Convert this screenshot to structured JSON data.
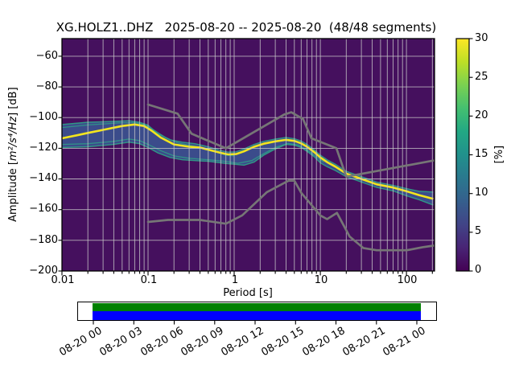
{
  "title": "XG.HOLZ1..DHZ   2025-08-20 -- 2025-08-20  (48/48 segments)",
  "axes": {
    "x": {
      "label": "Period [s]",
      "ticks": [
        "0.01",
        "0.1",
        "1",
        "10",
        "100"
      ],
      "tick_values": [
        0.01,
        0.1,
        1,
        10,
        100
      ]
    },
    "y": {
      "label_prefix": "Amplitude [",
      "label_math": "m²/s⁴/Hz",
      "label_suffix": "] [dB]",
      "ticks": [
        "−60",
        "−80",
        "−100",
        "−120",
        "−140",
        "−160",
        "−180",
        "−200"
      ],
      "tick_values": [
        -60,
        -80,
        -100,
        -120,
        -140,
        -160,
        -180,
        -200
      ]
    }
  },
  "colorbar": {
    "label": "[%]",
    "ticks": [
      "30",
      "25",
      "20",
      "15",
      "10",
      "5",
      "0"
    ],
    "tick_values": [
      30,
      25,
      20,
      15,
      10,
      5,
      0
    ],
    "min": 0,
    "max": 30,
    "stops": [
      [
        0.0,
        "#440154"
      ],
      [
        0.1,
        "#482475"
      ],
      [
        0.2,
        "#414487"
      ],
      [
        0.3,
        "#355f8d"
      ],
      [
        0.4,
        "#2a788e"
      ],
      [
        0.5,
        "#21918c"
      ],
      [
        0.6,
        "#22a884"
      ],
      [
        0.7,
        "#44bf70"
      ],
      [
        0.8,
        "#7ad151"
      ],
      [
        0.9,
        "#bddf26"
      ],
      [
        1.0,
        "#fde725"
      ]
    ]
  },
  "colors": {
    "background": "#45105e",
    "band_fill": "#3a5793",
    "band_edge": "#2fa387",
    "ridge": "#f3e51d",
    "noise_models": "#767676",
    "grid": "#c9c9c9",
    "spine": "#000000"
  },
  "timeline": {
    "labels": [
      "08-20 00",
      "08-20 03",
      "08-20 06",
      "08-20 09",
      "08-20 12",
      "08-20 15",
      "08-20 18",
      "08-20 21",
      "08-21 00"
    ],
    "coverage_top_color": "#008000",
    "coverage_bottom_color": "#0000ff"
  },
  "chart_data": {
    "type": "heatmap",
    "title": "XG.HOLZ1..DHZ   2025-08-20 -- 2025-08-20  (48/48 segments)",
    "xlabel": "Period [s]",
    "ylabel": "Amplitude [m^2/s^4/Hz] [dB]",
    "xscale": "log",
    "xlim": [
      0.01,
      212
    ],
    "ylim": [
      -200,
      -48.5
    ],
    "grid": true,
    "colorbar_label": "[%]",
    "colorbar_range": [
      0,
      30
    ],
    "series": [
      {
        "name": "psd-mode-ridge",
        "role": "histogram mode (highest probability, ~30%)",
        "points": [
          [
            0.01,
            -113.5
          ],
          [
            0.015,
            -111.5
          ],
          [
            0.02,
            -110.0
          ],
          [
            0.03,
            -108.0
          ],
          [
            0.05,
            -105.5
          ],
          [
            0.07,
            -104.5
          ],
          [
            0.09,
            -105.5
          ],
          [
            0.11,
            -108.5
          ],
          [
            0.14,
            -113.0
          ],
          [
            0.2,
            -117.5
          ],
          [
            0.3,
            -119.0
          ],
          [
            0.4,
            -119.5
          ],
          [
            0.55,
            -121.5
          ],
          [
            0.7,
            -123.0
          ],
          [
            0.85,
            -124.0
          ],
          [
            1.05,
            -123.8
          ],
          [
            1.3,
            -122.0
          ],
          [
            1.7,
            -119.0
          ],
          [
            2.2,
            -117.0
          ],
          [
            3.0,
            -115.5
          ],
          [
            4.0,
            -114.5
          ],
          [
            5.0,
            -115.2
          ],
          [
            6.0,
            -116.8
          ],
          [
            7.0,
            -119.0
          ],
          [
            8.5,
            -122.5
          ],
          [
            10.0,
            -126.0
          ],
          [
            12.0,
            -129.0
          ],
          [
            15.0,
            -132.0
          ],
          [
            20.0,
            -136.5
          ],
          [
            30.0,
            -140.0
          ],
          [
            45.0,
            -143.5
          ],
          [
            70.0,
            -145.6
          ],
          [
            100.0,
            -148.0
          ],
          [
            140.0,
            -150.5
          ],
          [
            205.0,
            -153.0
          ]
        ]
      },
      {
        "name": "psd-band-top",
        "role": "upper envelope of probability band",
        "points": [
          [
            0.01,
            -104.5
          ],
          [
            0.02,
            -103.0
          ],
          [
            0.04,
            -102.5
          ],
          [
            0.06,
            -102.0
          ],
          [
            0.08,
            -103.0
          ],
          [
            0.1,
            -105.0
          ],
          [
            0.13,
            -110.5
          ],
          [
            0.18,
            -114.5
          ],
          [
            0.25,
            -116.0
          ],
          [
            0.35,
            -117.0
          ],
          [
            0.5,
            -119.0
          ],
          [
            0.7,
            -121.5
          ],
          [
            0.85,
            -122.5
          ],
          [
            1.05,
            -122.3
          ],
          [
            1.3,
            -120.5
          ],
          [
            1.7,
            -117.5
          ],
          [
            2.2,
            -115.5
          ],
          [
            3.0,
            -114.0
          ],
          [
            4.0,
            -113.0
          ],
          [
            5.0,
            -113.8
          ],
          [
            6.0,
            -115.3
          ],
          [
            7.0,
            -117.5
          ],
          [
            8.5,
            -121.0
          ],
          [
            10.0,
            -124.5
          ],
          [
            12.0,
            -127.5
          ],
          [
            15.0,
            -130.5
          ],
          [
            20.0,
            -135.0
          ],
          [
            30.0,
            -138.5
          ],
          [
            45.0,
            -142.0
          ],
          [
            70.0,
            -144.2
          ],
          [
            100.0,
            -146.3
          ],
          [
            140.0,
            -148.0
          ],
          [
            205.0,
            -148.5
          ]
        ]
      },
      {
        "name": "psd-band-bottom",
        "role": "lower envelope of probability band",
        "points": [
          [
            0.01,
            -119.5
          ],
          [
            0.02,
            -119.0
          ],
          [
            0.04,
            -117.5
          ],
          [
            0.06,
            -116.0
          ],
          [
            0.08,
            -117.0
          ],
          [
            0.1,
            -119.5
          ],
          [
            0.13,
            -123.0
          ],
          [
            0.18,
            -126.0
          ],
          [
            0.25,
            -127.5
          ],
          [
            0.35,
            -128.0
          ],
          [
            0.5,
            -128.5
          ],
          [
            0.7,
            -129.5
          ],
          [
            0.85,
            -130.0
          ],
          [
            1.05,
            -130.5
          ],
          [
            1.3,
            -131.0
          ],
          [
            1.7,
            -129.0
          ],
          [
            2.2,
            -124.5
          ],
          [
            3.0,
            -120.5
          ],
          [
            4.0,
            -117.5
          ],
          [
            5.0,
            -118.0
          ],
          [
            6.0,
            -119.5
          ],
          [
            7.0,
            -122.0
          ],
          [
            8.5,
            -125.5
          ],
          [
            10.0,
            -129.5
          ],
          [
            12.0,
            -132.0
          ],
          [
            15.0,
            -134.5
          ],
          [
            20.0,
            -138.5
          ],
          [
            30.0,
            -142.0
          ],
          [
            45.0,
            -145.5
          ],
          [
            70.0,
            -147.8
          ],
          [
            100.0,
            -151.0
          ],
          [
            140.0,
            -153.5
          ],
          [
            205.0,
            -157.0
          ]
        ]
      },
      {
        "name": "psd-secondary-ridge-upper",
        "role": "secondary teal ridge in short-period cluster",
        "points": [
          [
            0.01,
            -106.5
          ],
          [
            0.02,
            -104.8
          ],
          [
            0.045,
            -103.5
          ],
          [
            0.07,
            -103.3
          ],
          [
            0.09,
            -104.5
          ],
          [
            0.12,
            -108.5
          ],
          [
            0.16,
            -113.0
          ],
          [
            0.22,
            -116.5
          ],
          [
            0.3,
            -118.0
          ],
          [
            0.45,
            -120.0
          ],
          [
            0.6,
            -122.0
          ],
          [
            0.8,
            -124.5
          ],
          [
            1.0,
            -125.0
          ]
        ]
      },
      {
        "name": "psd-secondary-ridge-lower",
        "role": "secondary teal ridge below mode",
        "points": [
          [
            0.01,
            -117.5
          ],
          [
            0.02,
            -117.0
          ],
          [
            0.04,
            -115.5
          ],
          [
            0.06,
            -114.0
          ],
          [
            0.08,
            -115.0
          ],
          [
            0.1,
            -117.5
          ],
          [
            0.14,
            -121.5
          ],
          [
            0.2,
            -125.0
          ],
          [
            0.3,
            -126.5
          ],
          [
            0.5,
            -127.5
          ],
          [
            0.8,
            -128.5
          ],
          [
            1.1,
            -129.8
          ],
          [
            1.6,
            -128.0
          ],
          [
            2.2,
            -123.5
          ],
          [
            3.0,
            -119.5
          ],
          [
            4.2,
            -116.8
          ],
          [
            5.5,
            -117.8
          ],
          [
            7.0,
            -121.0
          ],
          [
            9.0,
            -125.5
          ],
          [
            11.0,
            -129.0
          ]
        ]
      },
      {
        "name": "noise-model-nhnm",
        "role": "Peterson new high noise model (gray)",
        "points": [
          [
            0.1,
            -91.5
          ],
          [
            0.22,
            -97.4
          ],
          [
            0.32,
            -110.5
          ],
          [
            0.8,
            -120.0
          ],
          [
            3.8,
            -98.0
          ],
          [
            4.6,
            -96.5
          ],
          [
            6.3,
            -101.0
          ],
          [
            7.9,
            -113.5
          ],
          [
            15.4,
            -120.0
          ],
          [
            20.0,
            -138.5
          ],
          [
            205.0,
            -128.0
          ]
        ]
      },
      {
        "name": "noise-model-nlnm",
        "role": "Peterson new low noise model (gray)",
        "points": [
          [
            0.1,
            -168.0
          ],
          [
            0.17,
            -166.7
          ],
          [
            0.4,
            -166.7
          ],
          [
            0.8,
            -169.2
          ],
          [
            1.24,
            -163.7
          ],
          [
            2.4,
            -148.6
          ],
          [
            4.3,
            -141.1
          ],
          [
            5.0,
            -141.1
          ],
          [
            6.0,
            -149.0
          ],
          [
            10.0,
            -163.8
          ],
          [
            12.0,
            -166.2
          ],
          [
            15.6,
            -162.1
          ],
          [
            21.9,
            -177.5
          ],
          [
            31.6,
            -185.0
          ],
          [
            45.0,
            -186.5
          ],
          [
            70.0,
            -186.5
          ],
          [
            101.0,
            -186.5
          ],
          [
            154.0,
            -184.5
          ],
          [
            205.0,
            -183.5
          ]
        ]
      }
    ]
  }
}
